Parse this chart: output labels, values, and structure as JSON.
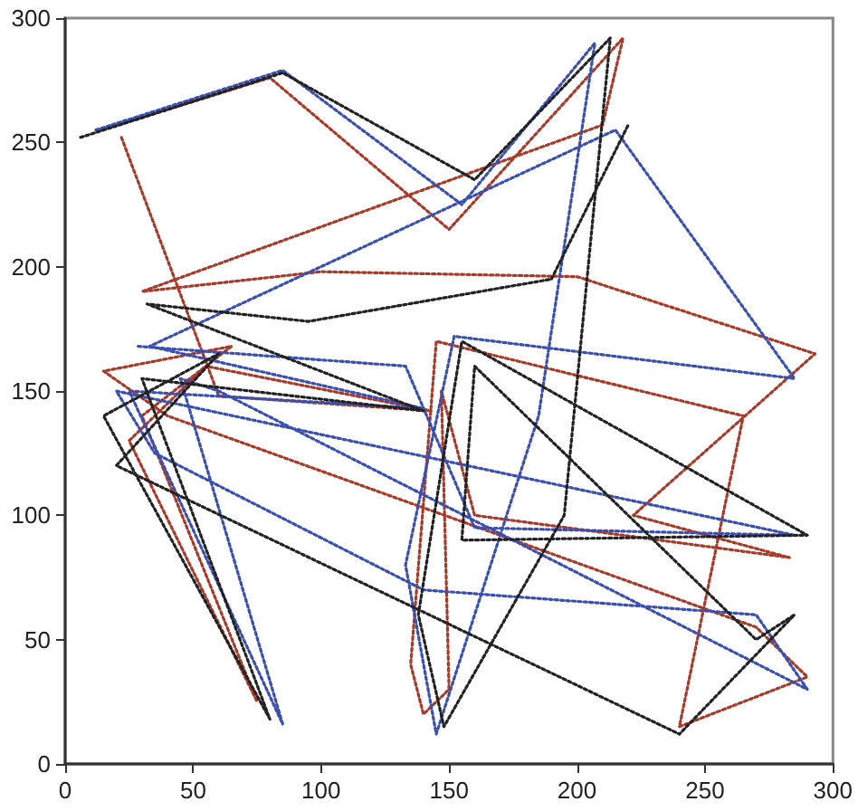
{
  "chart_data": {
    "type": "line",
    "xlim": [
      0,
      300
    ],
    "ylim": [
      0,
      300
    ],
    "xticks": [
      0,
      50,
      100,
      150,
      200,
      250,
      300
    ],
    "yticks": [
      0,
      50,
      100,
      150,
      200,
      250,
      300
    ],
    "grid": false,
    "marker": "none",
    "line_style": "dotted",
    "series": [
      {
        "color": "#a83a2a",
        "x": [
          14,
          80,
          150,
          218,
          210,
          30,
          100,
          200,
          293,
          222,
          283,
          160,
          147,
          150,
          140,
          135,
          145,
          265,
          240,
          290,
          270,
          40,
          15,
          65,
          30,
          75,
          25,
          55,
          143,
          60,
          22
        ],
        "values": [
          255,
          276,
          215,
          292,
          257,
          190,
          198,
          196,
          165,
          100,
          83,
          100,
          150,
          30,
          20,
          40,
          170,
          140,
          15,
          35,
          55,
          140,
          158,
          168,
          140,
          25,
          130,
          160,
          142,
          148,
          252
        ]
      },
      {
        "color": "#3a4fb0",
        "x": [
          12,
          85,
          155,
          207,
          185,
          145,
          133,
          152,
          285,
          215,
          33,
          140,
          25,
          85,
          45,
          60,
          290,
          270,
          140,
          35,
          20,
          285,
          160,
          133,
          28
        ],
        "values": [
          255,
          279,
          225,
          290,
          140,
          12,
          80,
          172,
          155,
          255,
          168,
          143,
          150,
          16,
          155,
          150,
          30,
          60,
          70,
          125,
          150,
          92,
          95,
          160,
          168
        ]
      },
      {
        "color": "#222222",
        "x": [
          6,
          85,
          160,
          213,
          195,
          148,
          138,
          155,
          290,
          155,
          160,
          270,
          285,
          240,
          20,
          60,
          15,
          80,
          30,
          140,
          32,
          95,
          190,
          220
        ],
        "values": [
          252,
          278,
          235,
          292,
          100,
          15,
          60,
          170,
          92,
          90,
          160,
          50,
          60,
          12,
          120,
          165,
          140,
          18,
          155,
          142,
          185,
          178,
          195,
          257
        ]
      }
    ]
  }
}
